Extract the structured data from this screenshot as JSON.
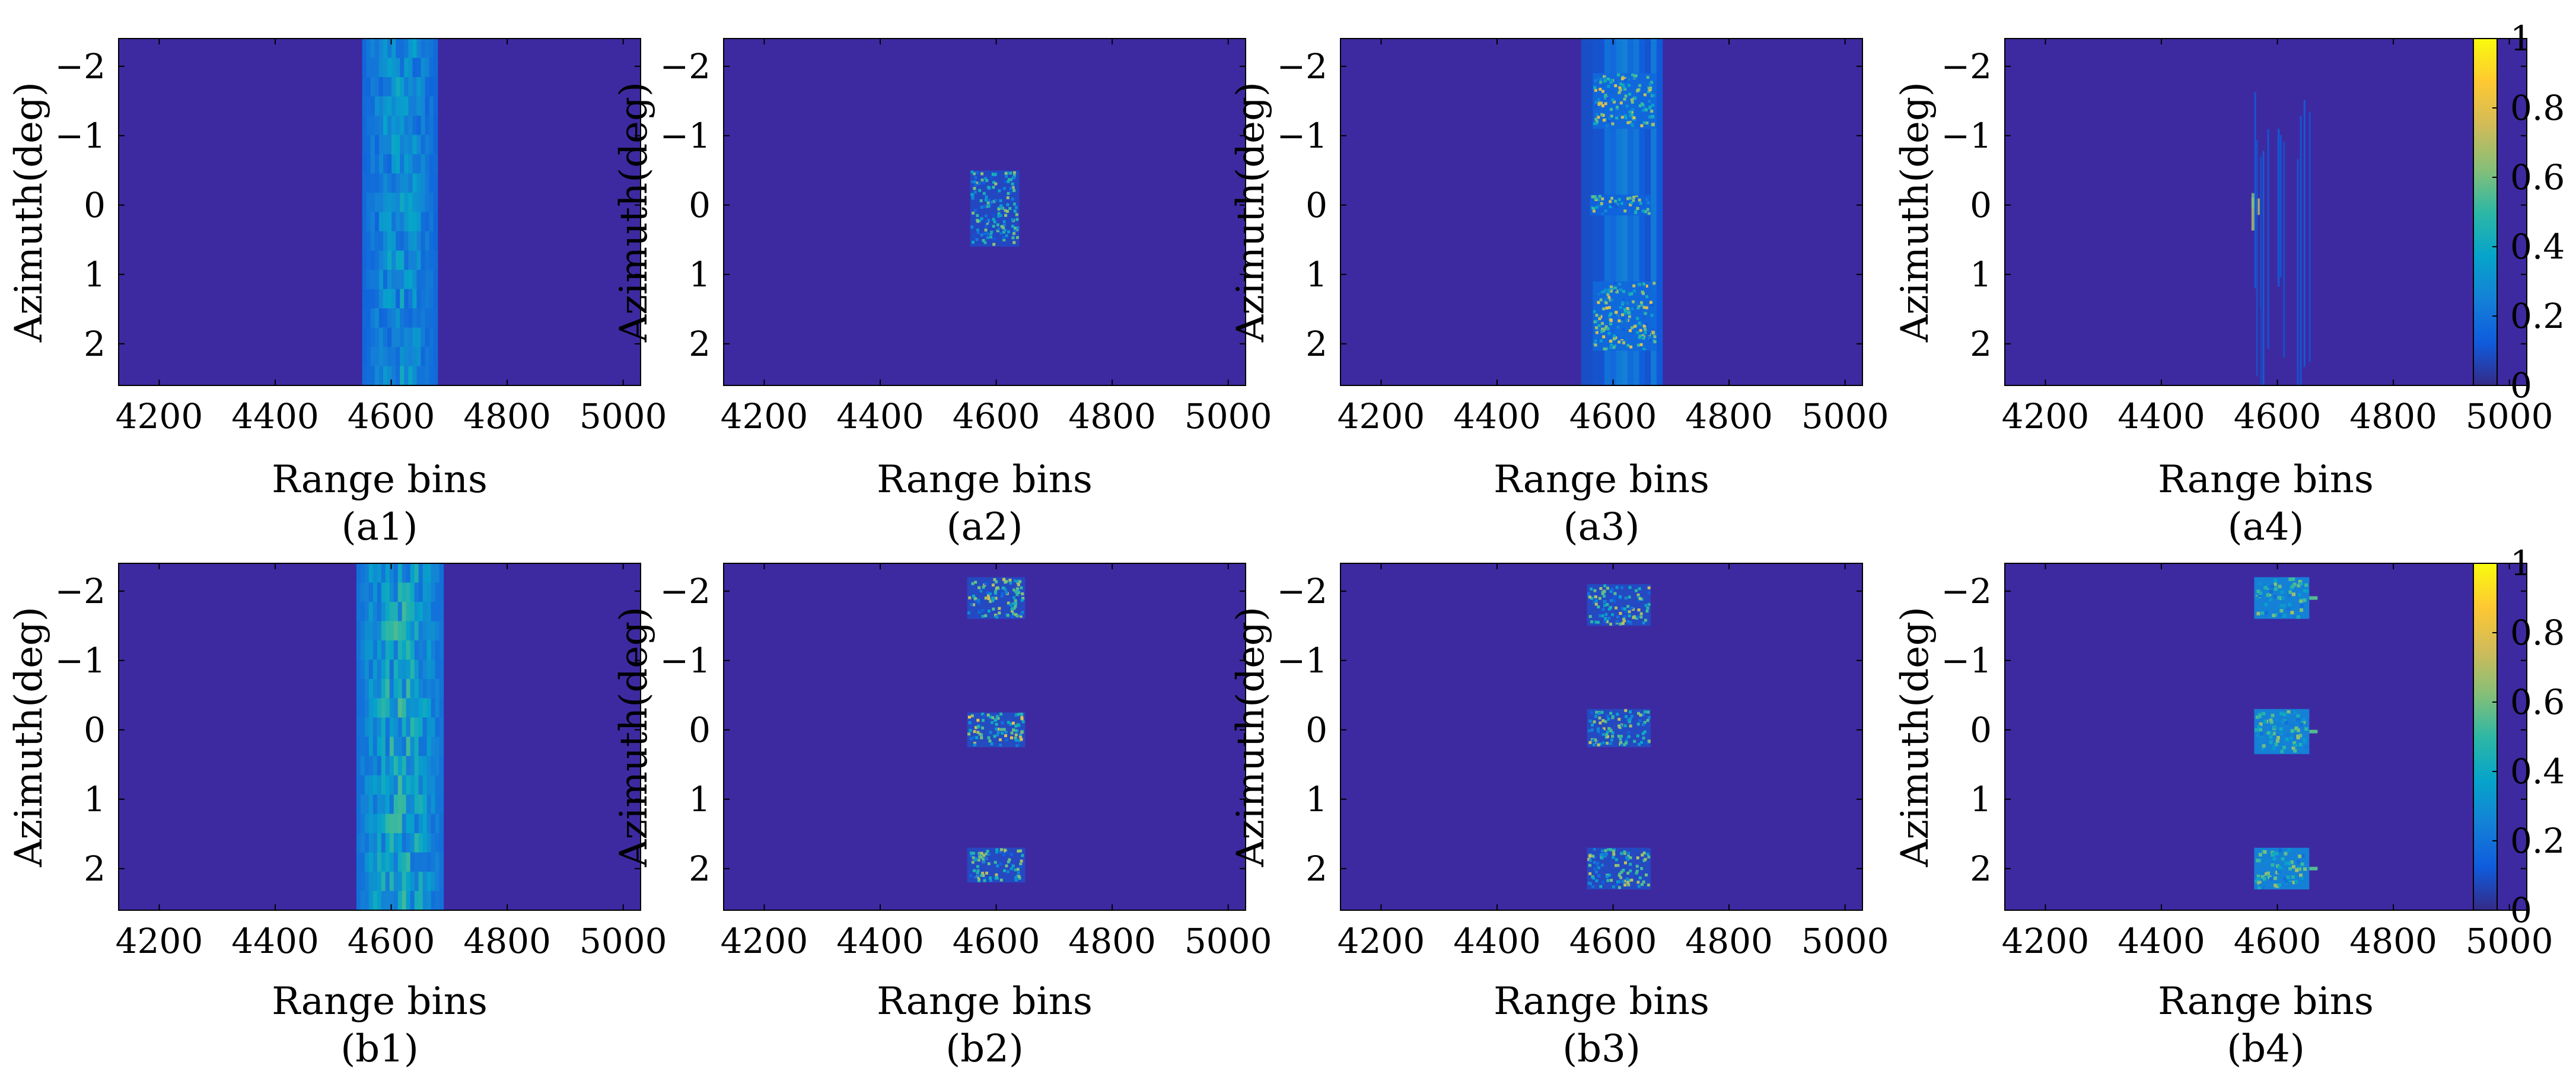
{
  "figure": {
    "colors": {
      "background": "#ffffff",
      "axis": "#000000",
      "field": "#3d2aa0"
    },
    "colormap": {
      "name": "parula",
      "stops": [
        "#352a87",
        "#0f5cdd",
        "#1481d6",
        "#06a4ca",
        "#2eb7a4",
        "#87bf77",
        "#d1bb59",
        "#fec832",
        "#f9fb0e"
      ],
      "ticks": [
        "0",
        "0.2",
        "0.4",
        "0.6",
        "0.8",
        "1"
      ],
      "tick_values": [
        0,
        0.2,
        0.4,
        0.6,
        0.8,
        1
      ]
    }
  },
  "chart_data": [
    {
      "id": "a1",
      "type": "heatmap",
      "caption": "(a1)",
      "xlabel": "Range bins",
      "ylabel": "Azimuth(deg)",
      "xlim": [
        4130,
        5030
      ],
      "ylim": [
        -2.4,
        2.6
      ],
      "y_reversed": true,
      "xticks": [
        4200,
        4400,
        4600,
        4800,
        5000
      ],
      "xtick_labels": [
        "4200",
        "4400",
        "4600",
        "4800",
        "5000"
      ],
      "yticks": [
        -2,
        -1,
        0,
        1,
        2
      ],
      "ytick_labels": [
        "−2",
        "−1",
        "0",
        "1",
        "2"
      ],
      "pattern": "smear",
      "regions": [
        {
          "x": [
            4550,
            4680
          ],
          "y": [
            -2.4,
            2.6
          ],
          "value": 0.3
        }
      ]
    },
    {
      "id": "a2",
      "type": "heatmap",
      "caption": "(a2)",
      "xlabel": "Range bins",
      "ylabel": "Azimuth(deg)",
      "xlim": [
        4130,
        5030
      ],
      "ylim": [
        -2.4,
        2.6
      ],
      "y_reversed": true,
      "xticks": [
        4200,
        4400,
        4600,
        4800,
        5000
      ],
      "xtick_labels": [
        "4200",
        "4400",
        "4600",
        "4800",
        "5000"
      ],
      "yticks": [
        -2,
        -1,
        0,
        1,
        2
      ],
      "ytick_labels": [
        "−2",
        "−1",
        "0",
        "1",
        "2"
      ],
      "pattern": "speckle",
      "regions": [
        {
          "x": [
            4555,
            4640
          ],
          "y": [
            -0.5,
            0.6
          ],
          "value": 0.45
        }
      ]
    },
    {
      "id": "a3",
      "type": "heatmap",
      "caption": "(a3)",
      "xlabel": "Range bins",
      "ylabel": "Azimuth(deg)",
      "xlim": [
        4130,
        5030
      ],
      "ylim": [
        -2.4,
        2.6
      ],
      "y_reversed": true,
      "xticks": [
        4200,
        4400,
        4600,
        4800,
        5000
      ],
      "xtick_labels": [
        "4200",
        "4400",
        "4600",
        "4800",
        "5000"
      ],
      "yticks": [
        -2,
        -1,
        0,
        1,
        2
      ],
      "ytick_labels": [
        "−2",
        "−1",
        "0",
        "1",
        "2"
      ],
      "pattern": "blocks",
      "regions": [
        {
          "x": [
            4545,
            4685
          ],
          "y": [
            -2.4,
            2.6
          ],
          "value": 0.18
        },
        {
          "x": [
            4565,
            4675
          ],
          "y": [
            -1.9,
            -1.1
          ],
          "value": 0.55
        },
        {
          "x": [
            4560,
            4665
          ],
          "y": [
            -0.15,
            0.15
          ],
          "value": 0.5
        },
        {
          "x": [
            4565,
            4675
          ],
          "y": [
            1.1,
            2.1
          ],
          "value": 0.55
        }
      ]
    },
    {
      "id": "a4",
      "type": "heatmap",
      "caption": "(a4)",
      "xlabel": "Range bins",
      "ylabel": "Azimuth(deg)",
      "xlim": [
        4130,
        5030
      ],
      "ylim": [
        -2.4,
        2.6
      ],
      "y_reversed": true,
      "xticks": [
        4200,
        4400,
        4600,
        4800,
        5000
      ],
      "xtick_labels": [
        "4200",
        "4400",
        "4600",
        "4800",
        "5000"
      ],
      "yticks": [
        -2,
        -1,
        0,
        1,
        2
      ],
      "ytick_labels": [
        "−2",
        "−1",
        "0",
        "1",
        "2"
      ],
      "pattern": "streaks",
      "regions": [
        {
          "x": [
            4555,
            4565
          ],
          "y": [
            -0.2,
            0.3
          ],
          "value": 0.7
        },
        {
          "x": [
            4560,
            4680
          ],
          "y": [
            -1.8,
            2.5
          ],
          "value": 0.12
        }
      ]
    },
    {
      "id": "b1",
      "type": "heatmap",
      "caption": "(b1)",
      "xlabel": "Range bins",
      "ylabel": "Azimuth(deg)",
      "xlim": [
        4130,
        5030
      ],
      "ylim": [
        -2.4,
        2.6
      ],
      "y_reversed": true,
      "xticks": [
        4200,
        4400,
        4600,
        4800,
        5000
      ],
      "xtick_labels": [
        "4200",
        "4400",
        "4600",
        "4800",
        "5000"
      ],
      "yticks": [
        -2,
        -1,
        0,
        1,
        2
      ],
      "ytick_labels": [
        "−2",
        "−1",
        "0",
        "1",
        "2"
      ],
      "pattern": "smear",
      "regions": [
        {
          "x": [
            4540,
            4690
          ],
          "y": [
            -2.4,
            2.6
          ],
          "value": 0.4
        }
      ]
    },
    {
      "id": "b2",
      "type": "heatmap",
      "caption": "(b2)",
      "xlabel": "Range bins",
      "ylabel": "Azimuth(deg)",
      "xlim": [
        4130,
        5030
      ],
      "ylim": [
        -2.4,
        2.6
      ],
      "y_reversed": true,
      "xticks": [
        4200,
        4400,
        4600,
        4800,
        5000
      ],
      "xtick_labels": [
        "4200",
        "4400",
        "4600",
        "4800",
        "5000"
      ],
      "yticks": [
        -2,
        -1,
        0,
        1,
        2
      ],
      "ytick_labels": [
        "−2",
        "−1",
        "0",
        "1",
        "2"
      ],
      "pattern": "speckle",
      "regions": [
        {
          "x": [
            4550,
            4650
          ],
          "y": [
            -2.2,
            -1.6
          ],
          "value": 0.5
        },
        {
          "x": [
            4550,
            4650
          ],
          "y": [
            -0.25,
            0.25
          ],
          "value": 0.55
        },
        {
          "x": [
            4550,
            4650
          ],
          "y": [
            1.7,
            2.2
          ],
          "value": 0.5
        }
      ]
    },
    {
      "id": "b3",
      "type": "heatmap",
      "caption": "(b3)",
      "xlabel": "Range bins",
      "ylabel": "Azimuth(deg)",
      "xlim": [
        4130,
        5030
      ],
      "ylim": [
        -2.4,
        2.6
      ],
      "y_reversed": true,
      "xticks": [
        4200,
        4400,
        4600,
        4800,
        5000
      ],
      "xtick_labels": [
        "4200",
        "4400",
        "4600",
        "4800",
        "5000"
      ],
      "yticks": [
        -2,
        -1,
        0,
        1,
        2
      ],
      "ytick_labels": [
        "−2",
        "−1",
        "0",
        "1",
        "2"
      ],
      "pattern": "speckle",
      "regions": [
        {
          "x": [
            4555,
            4665
          ],
          "y": [
            -2.1,
            -1.5
          ],
          "value": 0.5
        },
        {
          "x": [
            4555,
            4665
          ],
          "y": [
            -0.3,
            0.25
          ],
          "value": 0.5
        },
        {
          "x": [
            4555,
            4665
          ],
          "y": [
            1.7,
            2.3
          ],
          "value": 0.5
        }
      ]
    },
    {
      "id": "b4",
      "type": "heatmap",
      "caption": "(b4)",
      "xlabel": "Range bins",
      "ylabel": "Azimuth(deg)",
      "xlim": [
        4130,
        5030
      ],
      "ylim": [
        -2.4,
        2.6
      ],
      "y_reversed": true,
      "xticks": [
        4200,
        4400,
        4600,
        4800,
        5000
      ],
      "xtick_labels": [
        "4200",
        "4400",
        "4600",
        "4800",
        "5000"
      ],
      "yticks": [
        -2,
        -1,
        0,
        1,
        2
      ],
      "ytick_labels": [
        "−2",
        "−1",
        "0",
        "1",
        "2"
      ],
      "pattern": "solid",
      "regions": [
        {
          "x": [
            4560,
            4655
          ],
          "y": [
            -2.2,
            -1.6
          ],
          "value": 0.45
        },
        {
          "x": [
            4560,
            4655
          ],
          "y": [
            -0.3,
            0.35
          ],
          "value": 0.45
        },
        {
          "x": [
            4560,
            4655
          ],
          "y": [
            1.7,
            2.3
          ],
          "value": 0.45
        }
      ]
    }
  ]
}
